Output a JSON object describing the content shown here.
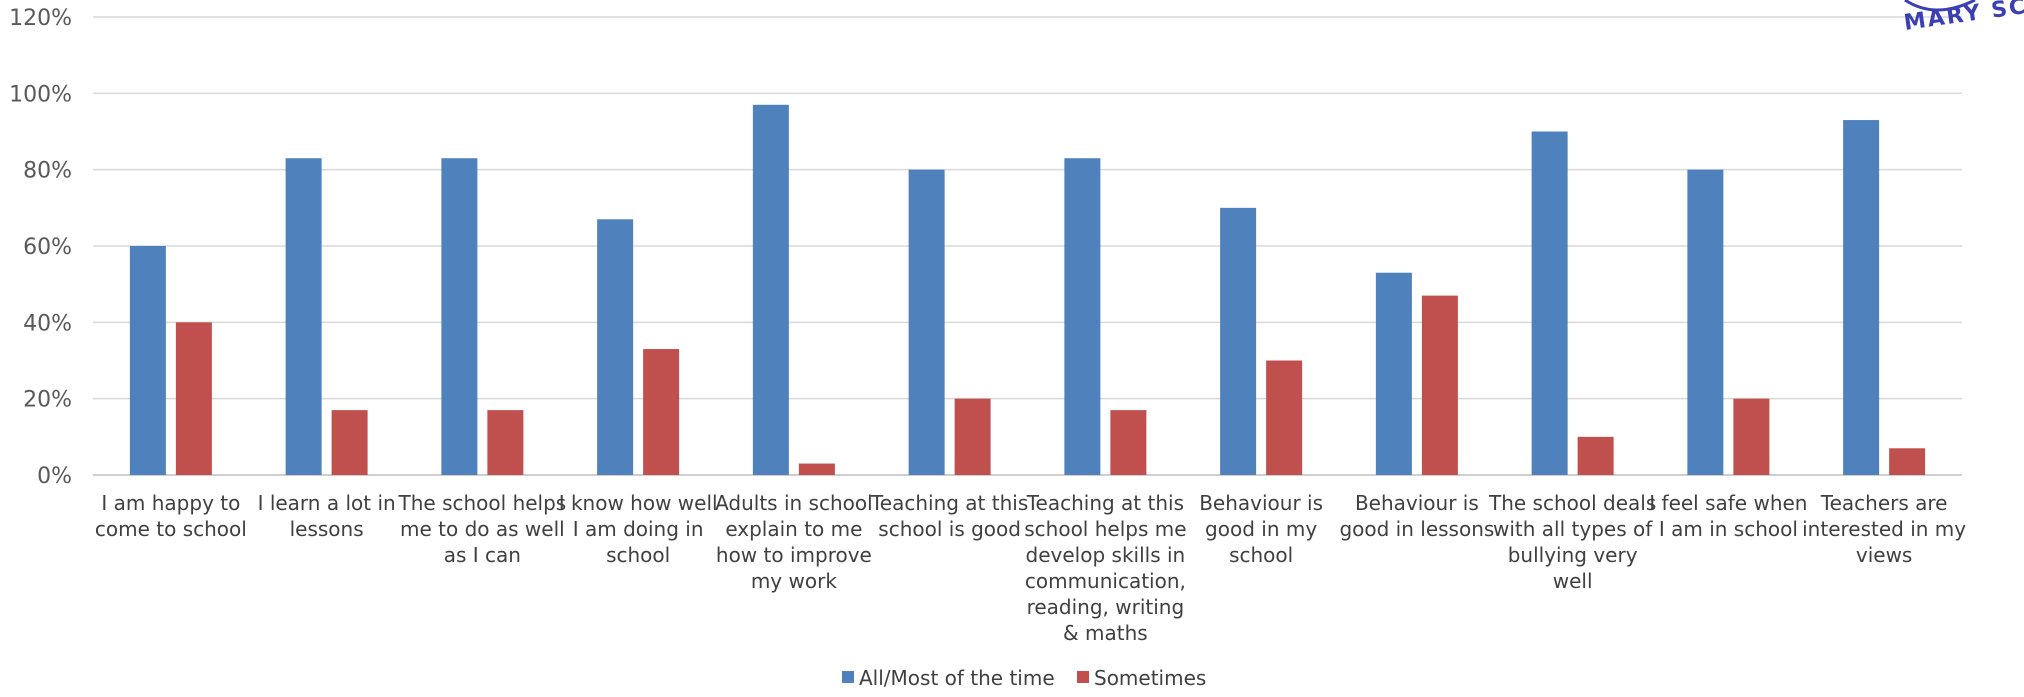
{
  "chart_data": {
    "type": "bar",
    "title": "",
    "xlabel": "",
    "ylabel": "",
    "ylim": [
      0,
      120
    ],
    "yticks": [
      "0%",
      "20%",
      "40%",
      "60%",
      "80%",
      "100%",
      "120%"
    ],
    "grid": true,
    "legend_position": "bottom",
    "categories": [
      [
        "I am happy to",
        "come to school"
      ],
      [
        "I learn a lot in",
        "lessons"
      ],
      [
        "The school helps",
        "me to do as well",
        "as I can"
      ],
      [
        "I know how well",
        "I am doing in",
        "school"
      ],
      [
        "Adults in school",
        "explain to me",
        "how to improve",
        "my work"
      ],
      [
        "Teaching at this",
        "school is good"
      ],
      [
        "Teaching at this",
        "school helps me",
        "develop skills in",
        "communication,",
        "reading, writing",
        "& maths"
      ],
      [
        "Behaviour is",
        "good in my",
        "school"
      ],
      [
        "Behaviour is",
        "good in lessons"
      ],
      [
        "The school deals",
        "with all types of",
        "bullying very",
        "well"
      ],
      [
        "I feel safe when",
        "I am in school"
      ],
      [
        "Teachers are",
        "interested in my",
        "views"
      ]
    ],
    "series": [
      {
        "name": "All/Most of the time",
        "color": "#4f81bd",
        "values": [
          60,
          83,
          83,
          67,
          97,
          80,
          83,
          70,
          53,
          90,
          80,
          93
        ]
      },
      {
        "name": "Sometimes",
        "color": "#c0504d",
        "values": [
          40,
          17,
          17,
          33,
          3,
          20,
          17,
          30,
          47,
          10,
          20,
          7
        ]
      }
    ]
  },
  "logo": {
    "text": "MARY SC",
    "color": "#3b3fb5"
  }
}
